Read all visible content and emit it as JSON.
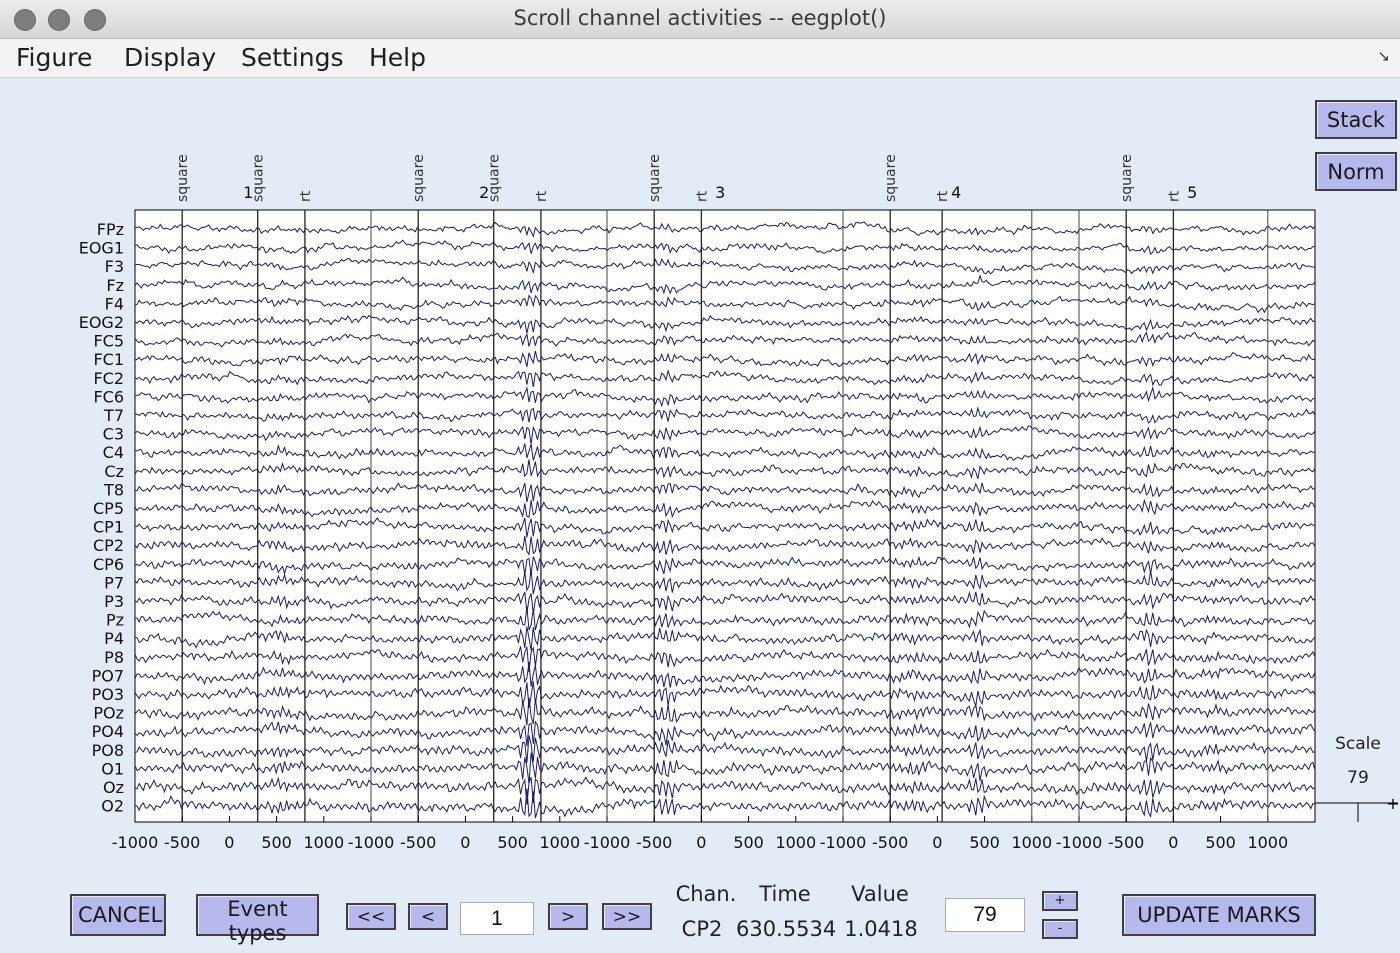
{
  "window": {
    "title": "Scroll channel activities -- eegplot()"
  },
  "menu": [
    "Figure",
    "Display",
    "Settings",
    "Help"
  ],
  "side_buttons": {
    "stack": "Stack",
    "norm": "Norm"
  },
  "scale": {
    "label": "Scale",
    "value": "79",
    "marker": "+"
  },
  "channels": [
    "FPz",
    "EOG1",
    "F3",
    "Fz",
    "F4",
    "EOG2",
    "FC5",
    "FC1",
    "FC2",
    "FC6",
    "T7",
    "C3",
    "C4",
    "Cz",
    "T8",
    "CP5",
    "CP1",
    "CP2",
    "CP6",
    "P7",
    "P3",
    "Pz",
    "P4",
    "P8",
    "PO7",
    "PO3",
    "POz",
    "PO4",
    "PO8",
    "O1",
    "Oz",
    "O2"
  ],
  "epochs": [
    {
      "number": "1",
      "events": [
        {
          "type": "square",
          "time": -500
        },
        {
          "type": "square",
          "time": 300
        },
        {
          "type": "rt",
          "time": 800
        }
      ]
    },
    {
      "number": "2",
      "events": [
        {
          "type": "square",
          "time": -500
        },
        {
          "type": "square",
          "time": 300
        },
        {
          "type": "rt",
          "time": 800
        }
      ]
    },
    {
      "number": "3",
      "events": [
        {
          "type": "square",
          "time": -500
        },
        {
          "type": "rt",
          "time": 0
        }
      ]
    },
    {
      "number": "4",
      "events": [
        {
          "type": "square",
          "time": -500
        },
        {
          "type": "rt",
          "time": 50
        }
      ]
    },
    {
      "number": "5",
      "events": [
        {
          "type": "square",
          "time": -500
        },
        {
          "type": "rt",
          "time": 0
        }
      ]
    }
  ],
  "epoch_boundaries_extra": [
    {
      "epoch": 3,
      "time": 1000
    },
    {
      "epoch": 4,
      "time": 1000
    }
  ],
  "x_ticks": [
    "-1000",
    "-500",
    "0",
    "500",
    "1000"
  ],
  "x_tick_values": [
    -1000,
    -500,
    0,
    500,
    1000
  ],
  "epoch_range_ms": [
    -1000,
    1500
  ],
  "controls": {
    "cancel": "CANCEL",
    "event_types": "Event types",
    "first": "<<",
    "prev": "<",
    "epoch_value": "1",
    "next": ">",
    "last": ">>",
    "update_marks": "UPDATE MARKS",
    "scale_value": "79",
    "plus": "+",
    "minus": "-"
  },
  "readout": {
    "chan_label": "Chan.",
    "time_label": "Time",
    "value_label": "Value",
    "chan": "CP2",
    "time": "630.5534",
    "value": "1.0418"
  },
  "colors": {
    "background": "#e3ecf6",
    "trace": "#1c1c64",
    "button": "#b7b9ed",
    "event_line": "#222222"
  }
}
